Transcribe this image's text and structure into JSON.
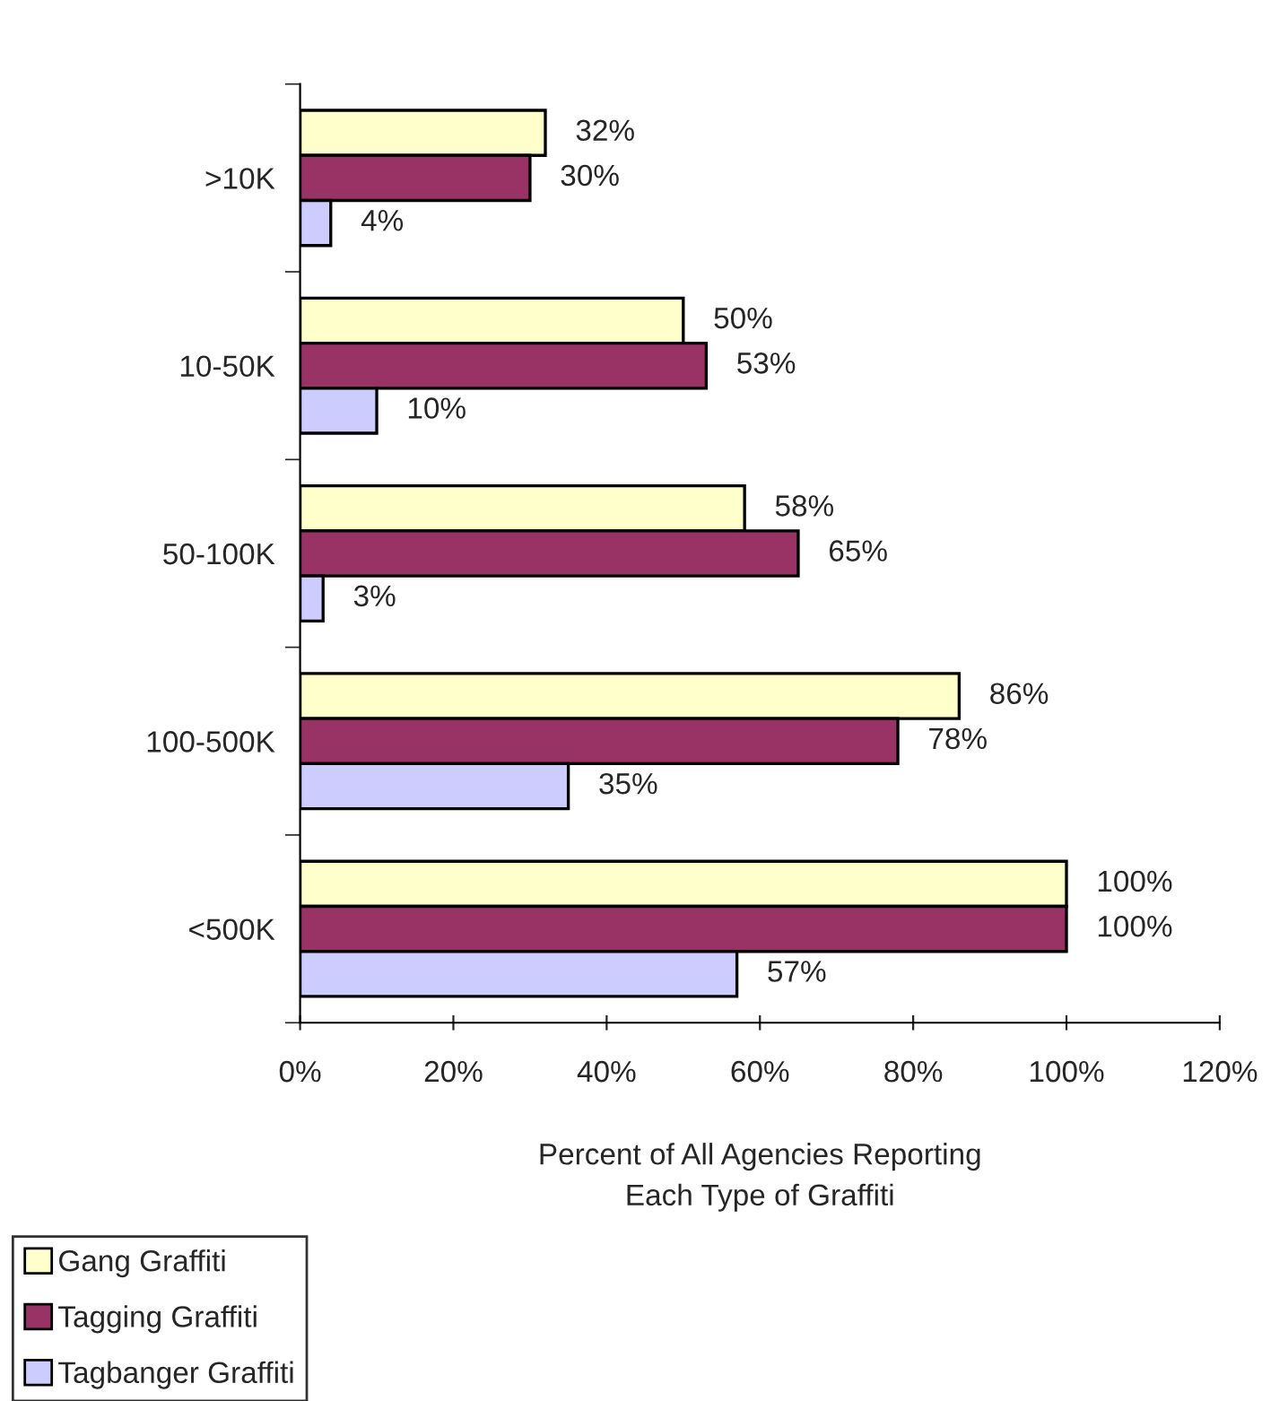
{
  "chart_data": {
    "type": "bar",
    "orientation": "horizontal",
    "xlabel": "Percent of All Agencies Reporting\nEach Type of Graffiti",
    "categories": [
      ">10K",
      "10-50K",
      "50-100K",
      "100-500K",
      "<500K"
    ],
    "series": [
      {
        "name": "Gang Graffiti",
        "color": "#ffffcc",
        "values": [
          32,
          50,
          58,
          86,
          100
        ],
        "value_labels": [
          "32%",
          "50%",
          "58%",
          "86%",
          "100%"
        ]
      },
      {
        "name": "Tagging Graffiti",
        "color": "#993366",
        "values": [
          30,
          53,
          65,
          78,
          100
        ],
        "value_labels": [
          "30%",
          "53%",
          "65%",
          "78%",
          "100%"
        ]
      },
      {
        "name": "Tagbanger Graffiti",
        "color": "#ccccff",
        "values": [
          4,
          10,
          3,
          35,
          57
        ],
        "value_labels": [
          "4%",
          "10%",
          "3%",
          "35%",
          "57%"
        ]
      }
    ],
    "xlim": [
      0,
      120
    ],
    "xticks": [
      {
        "value": 0,
        "label": "0%"
      },
      {
        "value": 20,
        "label": "20%"
      },
      {
        "value": 40,
        "label": "40%"
      },
      {
        "value": 60,
        "label": "60%"
      },
      {
        "value": 80,
        "label": "80%"
      },
      {
        "value": 100,
        "label": "100%"
      },
      {
        "value": 120,
        "label": "120%"
      }
    ],
    "grid": false,
    "legend": "bottom left"
  }
}
